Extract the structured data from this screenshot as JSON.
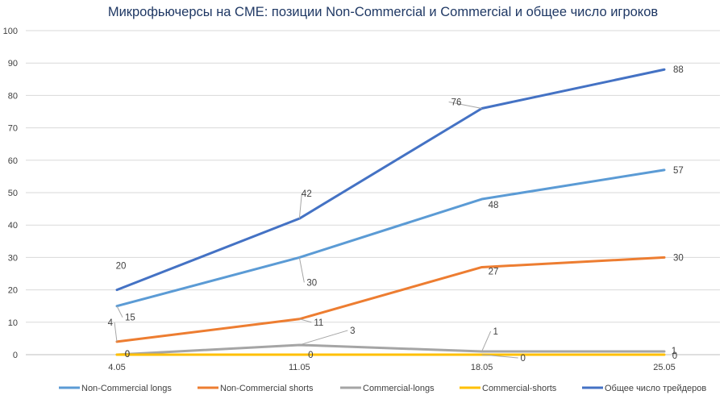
{
  "chart_data": {
    "type": "line",
    "title": "Микрофьючерсы на CME: позиции Non-Commercial и Commercial и общее число игроков",
    "categories": [
      "4.05",
      "11.05",
      "18.05",
      "25.05"
    ],
    "ylim": [
      0,
      100
    ],
    "yticks": [
      0,
      10,
      20,
      30,
      40,
      50,
      60,
      70,
      80,
      90,
      100
    ],
    "grid": true,
    "legend_position": "bottom",
    "series": [
      {
        "name": "Non-Commercial longs",
        "values": [
          15,
          30,
          48,
          57
        ],
        "color": "#5b9bd5"
      },
      {
        "name": "Non-Commercial shorts",
        "values": [
          4,
          11,
          27,
          30
        ],
        "color": "#ed7d31"
      },
      {
        "name": "Commercial-longs",
        "values": [
          0,
          3,
          1,
          1
        ],
        "color": "#a5a5a5"
      },
      {
        "name": "Commercial-shorts",
        "values": [
          0,
          0,
          0,
          0
        ],
        "color": "#ffc000"
      },
      {
        "name": "Общее число трейдеров",
        "values": [
          20,
          42,
          76,
          88
        ],
        "color": "#4472c4"
      }
    ]
  }
}
